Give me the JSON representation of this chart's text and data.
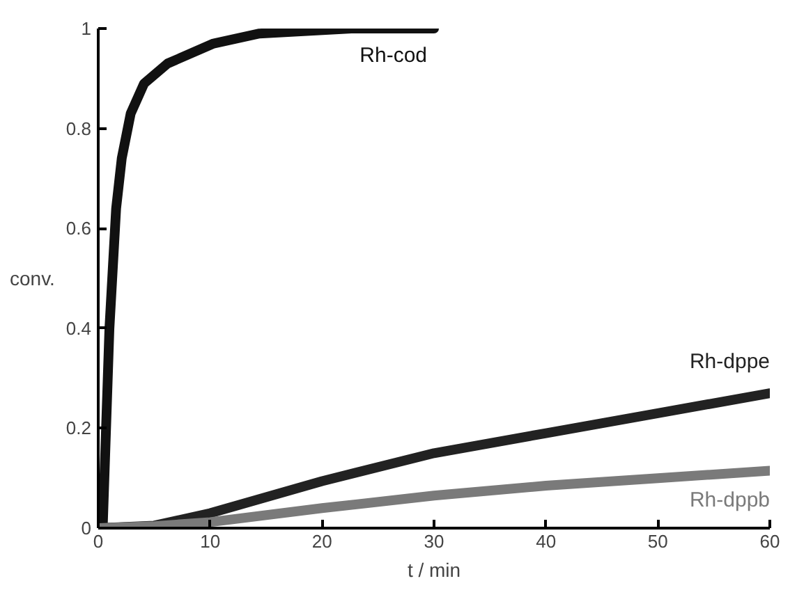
{
  "chart_data": {
    "type": "line",
    "xlabel": "t / min",
    "ylabel": "conv.",
    "xlim": [
      0,
      60
    ],
    "ylim": [
      0,
      1
    ],
    "xticks": [
      0,
      10,
      20,
      30,
      40,
      50,
      60
    ],
    "yticks": [
      0,
      0.2,
      0.4,
      0.6,
      0.8,
      1
    ],
    "grid": false,
    "legend": false,
    "marker": "none",
    "line_style": "solid",
    "series": [
      {
        "name": "Rh-cod",
        "color": "#111111",
        "x": [
          0,
          0.4,
          1.0,
          1.6,
          2.1,
          2.9,
          4.1,
          6.2,
          10.3,
          14.4,
          22.6,
          30
        ],
        "values": [
          0,
          0.0,
          0.4,
          0.64,
          0.74,
          0.83,
          0.89,
          0.93,
          0.97,
          0.99,
          1.0,
          1.0
        ]
      },
      {
        "name": "Rh-dppe",
        "color": "#222222",
        "x": [
          0,
          5,
          10,
          20,
          30,
          40,
          50,
          60
        ],
        "values": [
          0,
          0.005,
          0.03,
          0.094,
          0.15,
          0.19,
          0.23,
          0.27
        ]
      },
      {
        "name": "Rh-dppb",
        "color": "#7a7a7a",
        "x": [
          0,
          5,
          10,
          20,
          30,
          40,
          50,
          60
        ],
        "values": [
          0,
          0.004,
          0.012,
          0.04,
          0.065,
          0.085,
          0.1,
          0.115
        ]
      }
    ]
  }
}
